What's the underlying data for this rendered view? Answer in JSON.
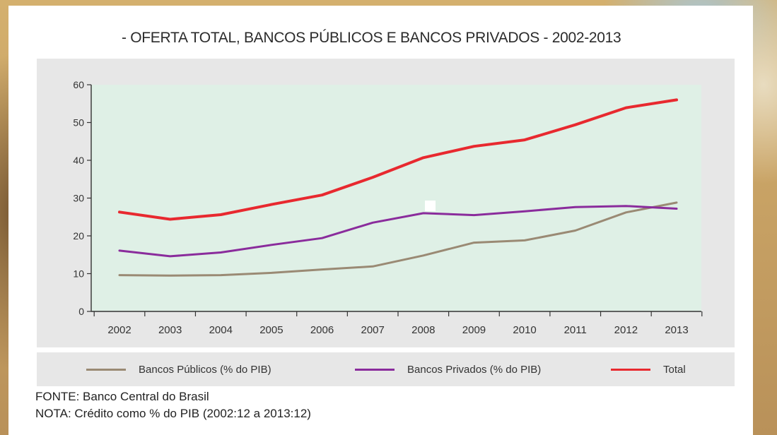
{
  "title": "- OFERTA TOTAL, BANCOS PÚBLICOS E BANCOS PRIVADOS - 2002-2013",
  "source_note": "FONTE: Banco Central do Brasil",
  "nota": "NOTA: Crédito como % do PIB (2002:12 a 2013:12)",
  "colors": {
    "plot_bg": "#dff0e6",
    "publicos": "#9a8a74",
    "privados": "#8a2c9c",
    "total": "#e8292f",
    "axis": "#333333"
  },
  "chart_data": {
    "type": "line",
    "title": "- OFERTA TOTAL, BANCOS PÚBLICOS E BANCOS PRIVADOS - 2002-2013",
    "xlabel": "",
    "ylabel": "",
    "categories": [
      "2002",
      "2003",
      "2004",
      "2005",
      "2006",
      "2007",
      "2008",
      "2009",
      "2010",
      "2011",
      "2012",
      "2013"
    ],
    "ylim": [
      0,
      60
    ],
    "yticks": [
      0,
      10,
      20,
      30,
      40,
      50,
      60
    ],
    "grid": false,
    "legend_position": "bottom",
    "series": [
      {
        "name": "Bancos Públicos (% do PIB)",
        "values": [
          9.6,
          9.5,
          9.6,
          10.2,
          11.1,
          11.9,
          14.8,
          18.2,
          18.8,
          21.4,
          26.2,
          28.8
        ]
      },
      {
        "name": "Bancos Privados (% do PIB)",
        "values": [
          16.1,
          14.6,
          15.6,
          17.6,
          19.4,
          23.5,
          26.0,
          25.5,
          26.5,
          27.6,
          27.9,
          27.2
        ]
      },
      {
        "name": "Total",
        "values": [
          26.3,
          24.4,
          25.6,
          28.3,
          30.8,
          35.5,
          40.7,
          43.7,
          45.4,
          49.4,
          53.9,
          56.0
        ]
      }
    ]
  }
}
